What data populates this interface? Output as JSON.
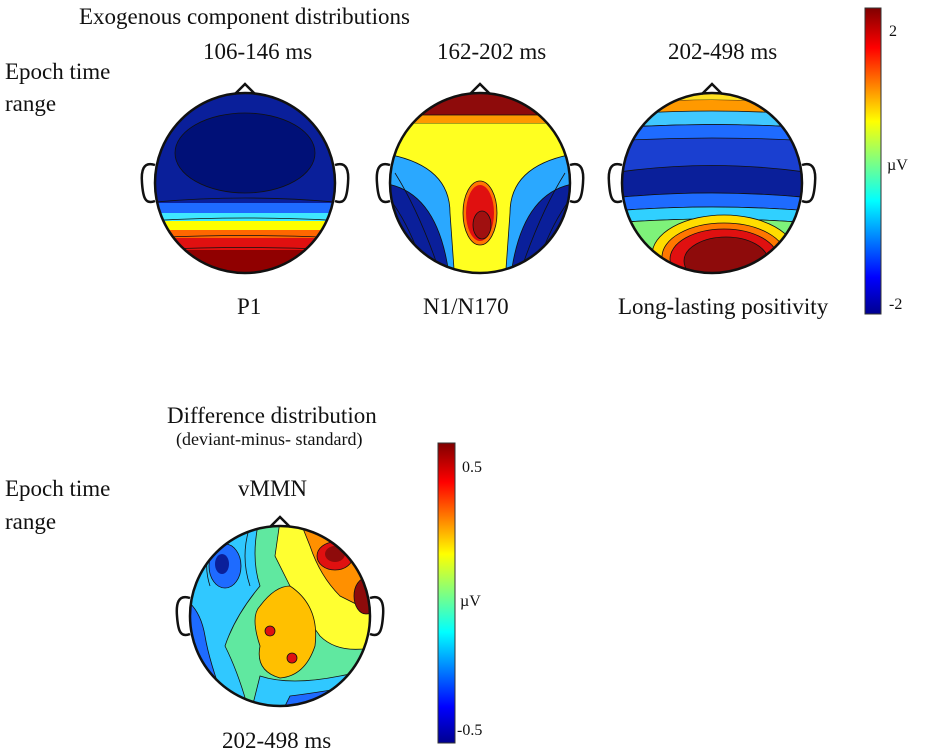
{
  "top": {
    "title": "Exogenous component distributions",
    "row_label": [
      "Epoch time",
      "range"
    ],
    "maps": [
      {
        "time": "106-146 ms",
        "component": "P1"
      },
      {
        "time": "162-202 ms",
        "component": "N1/N170"
      },
      {
        "time": "202-498 ms",
        "component": "Long-lasting positivity"
      }
    ],
    "colorbar": {
      "max": "2",
      "min": "-2",
      "unit": "µV"
    }
  },
  "bottom": {
    "title": "Difference distribution",
    "subtitle": "(deviant-minus- standard)",
    "row_label": [
      "Epoch time",
      "range"
    ],
    "map": {
      "label": "vMMN",
      "time": "202-498 ms"
    },
    "colorbar": {
      "max": "0.5",
      "min": "-0.5",
      "unit": "µV"
    }
  },
  "colors": {
    "jet": [
      "#00008f",
      "#0000ff",
      "#00ffff",
      "#ffff00",
      "#ff0000",
      "#800000"
    ],
    "outline": "#111111"
  }
}
